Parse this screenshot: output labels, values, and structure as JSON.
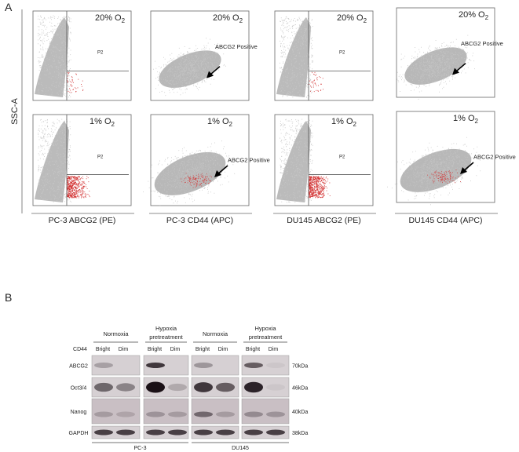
{
  "panel_a": {
    "label": "A",
    "y_axis_label": "SSC-A",
    "conditions": [
      {
        "prefix": "20% O",
        "sub": "2"
      },
      {
        "prefix": "1% O",
        "sub": "2"
      }
    ],
    "gate_label": "P2",
    "arrow_label": "ABCG2 Positive",
    "x_axis_labels": [
      "PC-3 ABCG2 (PE)",
      "PC-3 CD44 (APC)",
      "DU145 ABCG2 (PE)",
      "DU145 CD44 (APC)"
    ]
  },
  "panel_b": {
    "label": "B",
    "treatments": [
      [
        "Normoxia"
      ],
      [
        "Hypoxia",
        "pretreatment"
      ],
      [
        "Normoxia"
      ],
      [
        "Hypoxia",
        "pretreatment"
      ]
    ],
    "marker_label": "CD44",
    "fractions": [
      "Bright",
      "Dim"
    ],
    "proteins": [
      "ABCG2",
      "Oct3/4",
      "Nanog",
      "GAPDH"
    ],
    "sizes": [
      "70kDa",
      "46kDa",
      "40kDa",
      "38kDa"
    ],
    "cell_lines": [
      "PC-3",
      "DU145"
    ]
  }
}
